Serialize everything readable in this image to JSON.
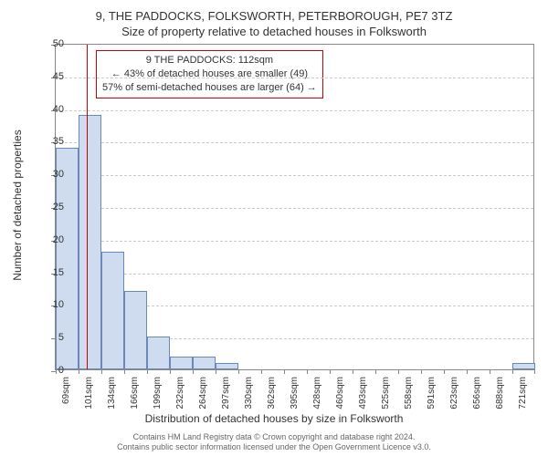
{
  "title": {
    "line1": "9, THE PADDOCKS, FOLKSWORTH, PETERBOROUGH, PE7 3TZ",
    "line2": "Size of property relative to detached houses in Folksworth"
  },
  "chart": {
    "type": "histogram",
    "ylabel": "Number of detached properties",
    "xlabel": "Distribution of detached houses by size in Folksworth",
    "ylim": [
      0,
      50
    ],
    "ytick_step": 5,
    "yticks": [
      0,
      5,
      10,
      15,
      20,
      25,
      30,
      35,
      40,
      45,
      50
    ],
    "x_categories": [
      "69sqm",
      "101sqm",
      "134sqm",
      "166sqm",
      "199sqm",
      "232sqm",
      "264sqm",
      "297sqm",
      "330sqm",
      "362sqm",
      "395sqm",
      "428sqm",
      "460sqm",
      "493sqm",
      "525sqm",
      "558sqm",
      "591sqm",
      "623sqm",
      "656sqm",
      "688sqm",
      "721sqm"
    ],
    "values": [
      34,
      39,
      18,
      12,
      5,
      2,
      2,
      1,
      0,
      0,
      0,
      0,
      0,
      0,
      0,
      0,
      0,
      0,
      0,
      0,
      1
    ],
    "bar_color": "#cfdcf0",
    "bar_border_color": "#6b89b8",
    "background_color": "#ffffff",
    "grid_color": "#cccccc",
    "axis_color": "#888888",
    "marker_position_index": 1.35,
    "marker_color": "#cc0000",
    "callout": {
      "line1": "9 THE PADDOCKS: 112sqm",
      "line2": "← 43% of detached houses are smaller (49)",
      "line3": "57% of semi-detached houses are larger (64) →"
    }
  },
  "footer": {
    "line1": "Contains HM Land Registry data © Crown copyright and database right 2024.",
    "line2": "Contains public sector information licensed under the Open Government Licence v3.0."
  }
}
